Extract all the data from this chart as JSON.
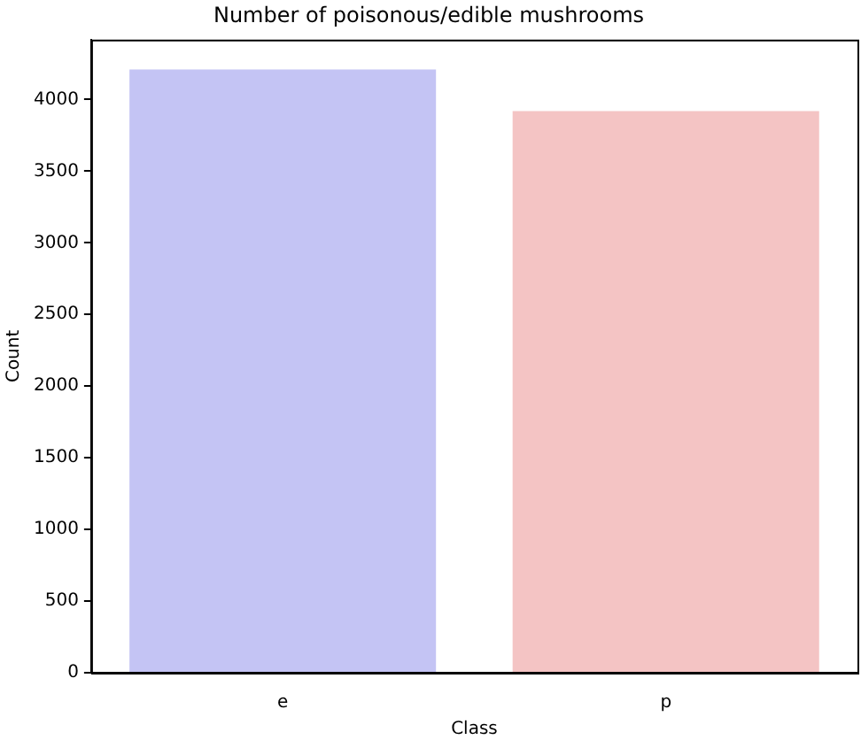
{
  "chart_data": {
    "type": "bar",
    "title": "Number of poisonous/edible mushrooms",
    "xlabel": "Class",
    "ylabel": "Count",
    "categories": [
      "e",
      "p"
    ],
    "values": [
      4210,
      3920
    ],
    "colors": [
      "#c4c4f4",
      "#f4c4c4"
    ],
    "ylim": [
      0,
      4418
    ],
    "yticks": [
      0,
      500,
      1000,
      1500,
      2000,
      2500,
      3000,
      3500,
      4000
    ],
    "grid": false,
    "legend": false
  }
}
